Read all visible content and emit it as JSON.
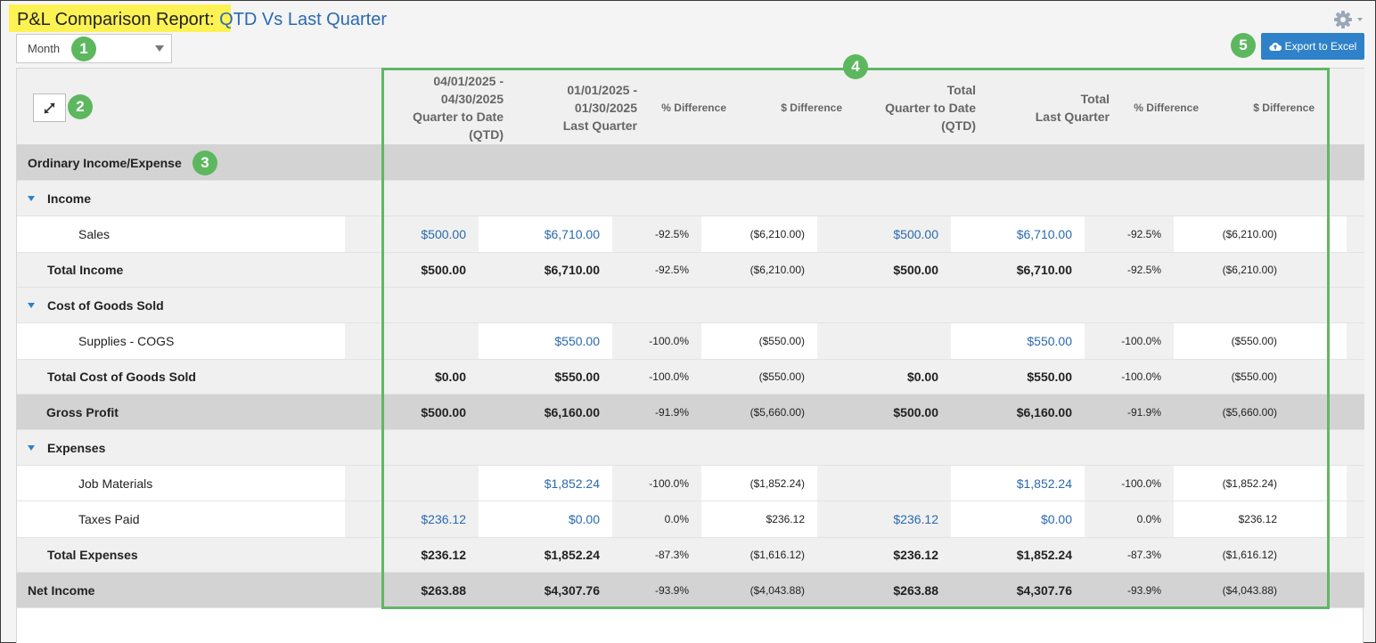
{
  "header": {
    "title_prefix": "P&L Comparison Report:",
    "title_suffix": " QTD Vs Last Quarter",
    "settings_icon": "gear-icon"
  },
  "filter": {
    "period_value": "Month"
  },
  "toolbar": {
    "export_label": "Export to Excel",
    "export_icon": "cloud-upload-icon"
  },
  "callouts": [
    "1",
    "2",
    "3",
    "4",
    "5"
  ],
  "columns": {
    "c1": [
      "04/01/2025 -",
      "04/30/2025",
      "Quarter to Date",
      "(QTD)"
    ],
    "c2": [
      "01/01/2025 -",
      "01/30/2025",
      "Last Quarter"
    ],
    "c3": [
      "% Difference"
    ],
    "c4": [
      "$ Difference"
    ],
    "c5": [
      "Total",
      "Quarter to Date",
      "(QTD)"
    ],
    "c6": [
      "Total",
      "Last Quarter"
    ],
    "c7": [
      "% Difference"
    ],
    "c8": [
      "$ Difference"
    ]
  },
  "rows": [
    {
      "label": "Ordinary Income/Expense",
      "type": "section",
      "values": [
        "",
        "",
        "",
        "",
        "",
        "",
        "",
        ""
      ]
    },
    {
      "label": "Income",
      "type": "cat",
      "values": [
        "",
        "",
        "",
        "",
        "",
        "",
        "",
        ""
      ]
    },
    {
      "label": "Sales",
      "type": "detail",
      "values": [
        "$500.00",
        "$6,710.00",
        "-92.5%",
        "($6,210.00)",
        "$500.00",
        "$6,710.00",
        "-92.5%",
        "($6,210.00)"
      ]
    },
    {
      "label": "Total Income",
      "type": "total",
      "values": [
        "$500.00",
        "$6,710.00",
        "-92.5%",
        "($6,210.00)",
        "$500.00",
        "$6,710.00",
        "-92.5%",
        "($6,210.00)"
      ]
    },
    {
      "label": "Cost of Goods Sold",
      "type": "cat",
      "values": [
        "",
        "",
        "",
        "",
        "",
        "",
        "",
        ""
      ]
    },
    {
      "label": "Supplies - COGS",
      "type": "detail",
      "values": [
        "",
        "$550.00",
        "-100.0%",
        "($550.00)",
        "",
        "$550.00",
        "-100.0%",
        "($550.00)"
      ]
    },
    {
      "label": "Total Cost of Goods Sold",
      "type": "total",
      "values": [
        "$0.00",
        "$550.00",
        "-100.0%",
        "($550.00)",
        "$0.00",
        "$550.00",
        "-100.0%",
        "($550.00)"
      ]
    },
    {
      "label": "Gross Profit",
      "type": "grand",
      "values": [
        "$500.00",
        "$6,160.00",
        "-91.9%",
        "($5,660.00)",
        "$500.00",
        "$6,160.00",
        "-91.9%",
        "($5,660.00)"
      ]
    },
    {
      "label": "Expenses",
      "type": "cat",
      "values": [
        "",
        "",
        "",
        "",
        "",
        "",
        "",
        ""
      ]
    },
    {
      "label": "Job Materials",
      "type": "detail",
      "values": [
        "",
        "$1,852.24",
        "-100.0%",
        "($1,852.24)",
        "",
        "$1,852.24",
        "-100.0%",
        "($1,852.24)"
      ]
    },
    {
      "label": "Taxes Paid",
      "type": "detail",
      "values": [
        "$236.12",
        "$0.00",
        "0.0%",
        "$236.12",
        "$236.12",
        "$0.00",
        "0.0%",
        "$236.12"
      ]
    },
    {
      "label": "Total Expenses",
      "type": "total",
      "values": [
        "$236.12",
        "$1,852.24",
        "-87.3%",
        "($1,616.12)",
        "$236.12",
        "$1,852.24",
        "-87.3%",
        "($1,616.12)"
      ]
    },
    {
      "label": "Net Income",
      "type": "grand",
      "values": [
        "$263.88",
        "$4,307.76",
        "-93.9%",
        "($4,043.88)",
        "$263.88",
        "$4,307.76",
        "-93.9%",
        "($4,043.88)"
      ]
    }
  ]
}
